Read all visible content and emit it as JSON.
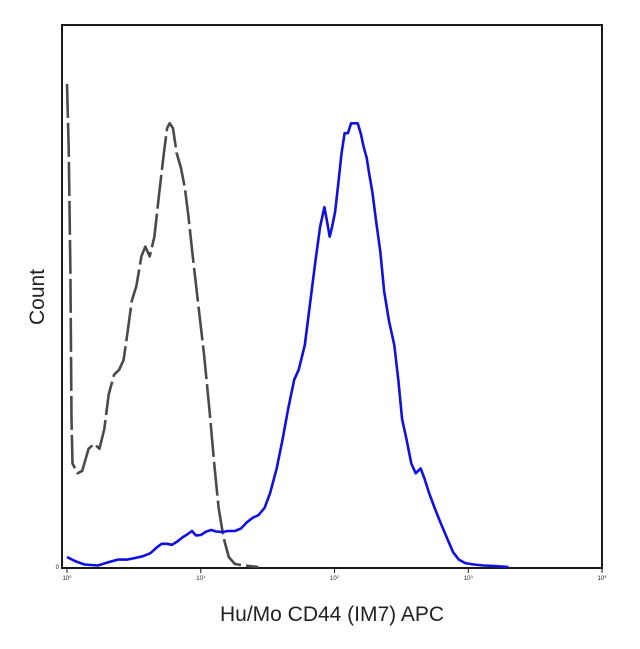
{
  "chart_data": {
    "type": "line",
    "title": "",
    "xlabel": "Hu/Mo CD44 (IM7) APC",
    "ylabel": "Count",
    "x_scale": "log",
    "xlim": [
      1,
      10000
    ],
    "ylim": [
      0,
      100
    ],
    "grid": false,
    "legend": "none",
    "x_ticks": [
      {
        "value": 1,
        "base": "10",
        "exp": "0"
      },
      {
        "value": 10,
        "base": "10",
        "exp": "1"
      },
      {
        "value": 100,
        "base": "10",
        "exp": "2"
      },
      {
        "value": 1000,
        "base": "10",
        "exp": "3"
      },
      {
        "value": 10000,
        "base": "10",
        "exp": "4"
      }
    ],
    "y_ticks": [
      {
        "value": 0,
        "label": "0"
      }
    ],
    "series": [
      {
        "color": "#4a4a4a",
        "dashed": true,
        "points": [
          [
            1.0,
            98
          ],
          [
            1.03,
            85
          ],
          [
            1.06,
            60
          ],
          [
            1.08,
            30
          ],
          [
            1.1,
            21
          ],
          [
            1.2,
            19
          ],
          [
            1.3,
            19.5
          ],
          [
            1.45,
            24
          ],
          [
            1.6,
            25
          ],
          [
            1.75,
            24
          ],
          [
            1.9,
            28
          ],
          [
            2.05,
            35
          ],
          [
            2.25,
            39
          ],
          [
            2.45,
            40
          ],
          [
            2.65,
            42
          ],
          [
            2.85,
            48
          ],
          [
            3.05,
            54
          ],
          [
            3.3,
            57
          ],
          [
            3.6,
            63
          ],
          [
            3.85,
            65
          ],
          [
            4.15,
            63
          ],
          [
            4.5,
            67
          ],
          [
            4.9,
            76
          ],
          [
            5.3,
            84
          ],
          [
            5.6,
            89
          ],
          [
            5.85,
            90
          ],
          [
            6.2,
            89
          ],
          [
            6.6,
            84
          ],
          [
            7.1,
            81
          ],
          [
            7.6,
            77
          ],
          [
            8.1,
            71
          ],
          [
            8.8,
            62
          ],
          [
            9.6,
            53
          ],
          [
            10.6,
            43
          ],
          [
            11.6,
            32
          ],
          [
            12.6,
            21
          ],
          [
            13.6,
            12
          ],
          [
            14.8,
            6
          ],
          [
            16.2,
            2
          ],
          [
            18,
            0.6
          ],
          [
            21,
            0.3
          ],
          [
            27,
            0
          ]
        ]
      },
      {
        "color": "#1010e0",
        "dashed": false,
        "points": [
          [
            1.0,
            2
          ],
          [
            1.15,
            1.2
          ],
          [
            1.35,
            0.5
          ],
          [
            1.7,
            0.3
          ],
          [
            2.05,
            1
          ],
          [
            2.4,
            1.5
          ],
          [
            2.8,
            1.5
          ],
          [
            3.2,
            1.8
          ],
          [
            3.7,
            2.2
          ],
          [
            4.2,
            2.8
          ],
          [
            4.7,
            4
          ],
          [
            5.1,
            4.7
          ],
          [
            5.6,
            4.7
          ],
          [
            6.1,
            4.5
          ],
          [
            6.7,
            5.2
          ],
          [
            7.3,
            6
          ],
          [
            7.9,
            6.6
          ],
          [
            8.6,
            7.3
          ],
          [
            9.2,
            6.4
          ],
          [
            10,
            6.5
          ],
          [
            11,
            7.2
          ],
          [
            12,
            7.5
          ],
          [
            13,
            7.2
          ],
          [
            14.5,
            7.1
          ],
          [
            16,
            7.3
          ],
          [
            18,
            7.3
          ],
          [
            20,
            7.8
          ],
          [
            22,
            9
          ],
          [
            24.5,
            10
          ],
          [
            27,
            10.5
          ],
          [
            30,
            12
          ],
          [
            33,
            15
          ],
          [
            37,
            20
          ],
          [
            41,
            26
          ],
          [
            45,
            32
          ],
          [
            50,
            38
          ],
          [
            54,
            40
          ],
          [
            60,
            45
          ],
          [
            66,
            54
          ],
          [
            72,
            62
          ],
          [
            78,
            69
          ],
          [
            84,
            73
          ],
          [
            88,
            70
          ],
          [
            92,
            67
          ],
          [
            96,
            69
          ],
          [
            101,
            72
          ],
          [
            107,
            78
          ],
          [
            113,
            84
          ],
          [
            119,
            88
          ],
          [
            126,
            88
          ],
          [
            133,
            90
          ],
          [
            141,
            90
          ],
          [
            149,
            90
          ],
          [
            157,
            88
          ],
          [
            166,
            85
          ],
          [
            174,
            83
          ],
          [
            181,
            80
          ],
          [
            192,
            76
          ],
          [
            205,
            70
          ],
          [
            220,
            64
          ],
          [
            235,
            56
          ],
          [
            255,
            50
          ],
          [
            280,
            45
          ],
          [
            300,
            38
          ],
          [
            320,
            30
          ],
          [
            345,
            26
          ],
          [
            375,
            21
          ],
          [
            405,
            19
          ],
          [
            440,
            20
          ],
          [
            470,
            18
          ],
          [
            510,
            15
          ],
          [
            560,
            12
          ],
          [
            620,
            9
          ],
          [
            690,
            6
          ],
          [
            770,
            3
          ],
          [
            850,
            1.5
          ],
          [
            950,
            0.8
          ],
          [
            1100,
            0.5
          ],
          [
            1300,
            0.3
          ],
          [
            1600,
            0.2
          ],
          [
            2000,
            0
          ]
        ]
      }
    ]
  }
}
